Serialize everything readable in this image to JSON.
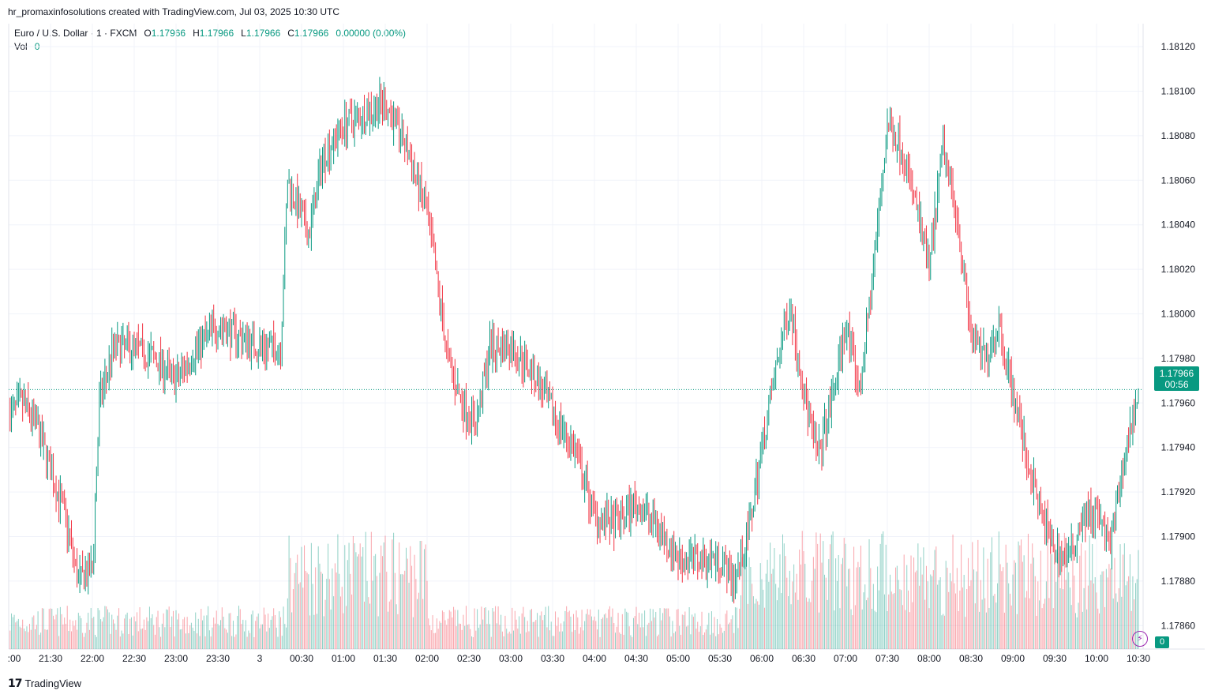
{
  "attribution": "hr_promaxinfosolutions created with TradingView.com, Jul 03, 2025 10:30 UTC",
  "legend": {
    "symbol": "Euro / U.S. Dollar · 1 · FXCM",
    "o_label": "O",
    "o_value": "1.17966",
    "h_label": "H",
    "h_value": "1.17966",
    "l_label": "L",
    "l_value": "1.17966",
    "c_label": "C",
    "c_value": "1.17966",
    "change": "0.00000 (0.00%)",
    "vol_label": "Vol",
    "vol_value": "0"
  },
  "last_price": {
    "value": "1.17966",
    "countdown": "00:56"
  },
  "volume_tag": "0",
  "footer_brand": "TradingView",
  "colors": {
    "up": "#089981",
    "down": "#f23645",
    "grid": "#f0f3fa",
    "text": "#131722",
    "alert": "#9c27b0"
  },
  "chart_data": {
    "type": "candlestick",
    "ylim": [
      1.1785,
      1.18125
    ],
    "y_ticks": [
      "1.18120",
      "1.18100",
      "1.18080",
      "1.18060",
      "1.18040",
      "1.18020",
      "1.18000",
      "1.17980",
      "1.17960",
      "1.17940",
      "1.17920",
      "1.17900",
      "1.17880",
      "1.17860"
    ],
    "x_ticks": [
      ":00",
      "21:30",
      "22:00",
      "22:30",
      "23:00",
      "23:30",
      "3",
      "00:30",
      "01:00",
      "01:30",
      "02:00",
      "02:30",
      "03:00",
      "03:30",
      "04:00",
      "04:30",
      "05:00",
      "05:30",
      "06:00",
      "06:30",
      "07:00",
      "07:30",
      "08:00",
      "08:30",
      "09:00",
      "09:30",
      "10:00",
      "10:30"
    ],
    "close_path": [
      [
        "21:00",
        1.17955
      ],
      [
        "21:10",
        1.1796
      ],
      [
        "21:20",
        1.1795
      ],
      [
        "21:30",
        1.1793
      ],
      [
        "21:40",
        1.1791
      ],
      [
        "21:50",
        1.1788
      ],
      [
        "22:00",
        1.17885
      ],
      [
        "22:05",
        1.1796
      ],
      [
        "22:15",
        1.17985
      ],
      [
        "22:30",
        1.17985
      ],
      [
        "22:45",
        1.1798
      ],
      [
        "23:00",
        1.1797
      ],
      [
        "23:15",
        1.17985
      ],
      [
        "23:30",
        1.17995
      ],
      [
        "23:45",
        1.1799
      ],
      [
        "00:00",
        1.17985
      ],
      [
        "00:15",
        1.17985
      ],
      [
        "00:20",
        1.1806
      ],
      [
        "00:35",
        1.18035
      ],
      [
        "00:45",
        1.1807
      ],
      [
        "01:00",
        1.18085
      ],
      [
        "01:15",
        1.1809
      ],
      [
        "01:30",
        1.18095
      ],
      [
        "01:45",
        1.18075
      ],
      [
        "02:00",
        1.18045
      ],
      [
        "02:15",
        1.1798
      ],
      [
        "02:25",
        1.1796
      ],
      [
        "02:35",
        1.1795
      ],
      [
        "02:45",
        1.17985
      ],
      [
        "03:00",
        1.17985
      ],
      [
        "03:15",
        1.17975
      ],
      [
        "03:30",
        1.17955
      ],
      [
        "03:45",
        1.1794
      ],
      [
        "04:00",
        1.1791
      ],
      [
        "04:15",
        1.17905
      ],
      [
        "04:30",
        1.17915
      ],
      [
        "04:45",
        1.17905
      ],
      [
        "05:00",
        1.1789
      ],
      [
        "05:15",
        1.1789
      ],
      [
        "05:30",
        1.1789
      ],
      [
        "05:40",
        1.1788
      ],
      [
        "05:50",
        1.179
      ],
      [
        "06:00",
        1.1794
      ],
      [
        "06:10",
        1.17975
      ],
      [
        "06:20",
        1.18005
      ],
      [
        "06:30",
        1.17965
      ],
      [
        "06:40",
        1.17935
      ],
      [
        "06:50",
        1.1796
      ],
      [
        "07:00",
        1.17995
      ],
      [
        "07:10",
        1.17965
      ],
      [
        "07:20",
        1.1802
      ],
      [
        "07:30",
        1.18085
      ],
      [
        "07:40",
        1.18075
      ],
      [
        "07:50",
        1.1805
      ],
      [
        "08:00",
        1.1802
      ],
      [
        "08:10",
        1.18075
      ],
      [
        "08:20",
        1.18045
      ],
      [
        "08:30",
        1.1799
      ],
      [
        "08:40",
        1.1798
      ],
      [
        "08:50",
        1.17995
      ],
      [
        "09:00",
        1.17965
      ],
      [
        "09:10",
        1.17935
      ],
      [
        "09:20",
        1.1791
      ],
      [
        "09:30",
        1.17895
      ],
      [
        "09:40",
        1.1789
      ],
      [
        "09:50",
        1.1791
      ],
      [
        "10:00",
        1.1791
      ],
      [
        "10:10",
        1.17895
      ],
      [
        "10:20",
        1.17935
      ],
      [
        "10:30",
        1.17966
      ]
    ]
  }
}
